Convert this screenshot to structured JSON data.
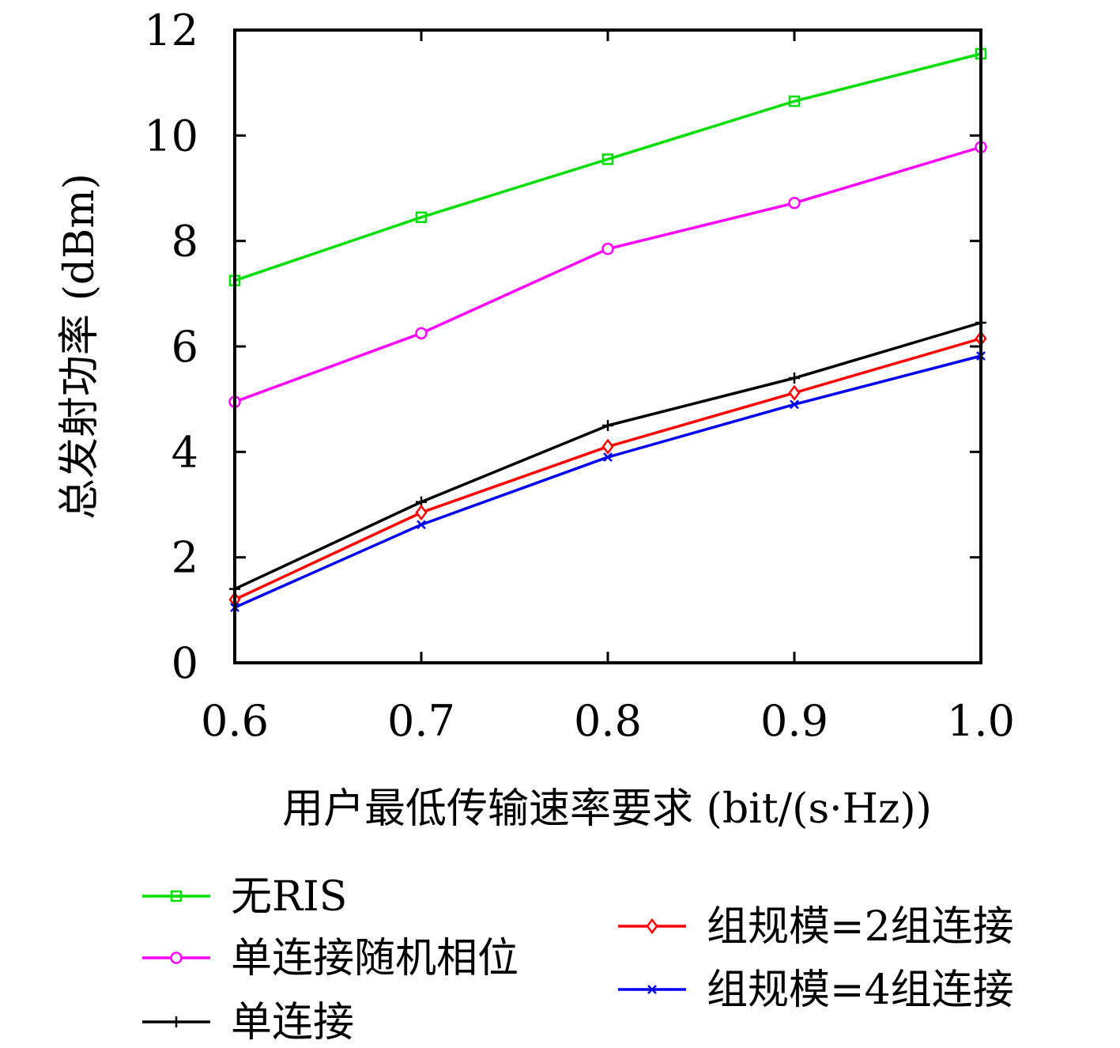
{
  "chart_data": {
    "type": "line",
    "xlabel": "用户最低传输速率要求 (bit/(s·Hz))",
    "ylabel": "总发射功率 (dBm)",
    "xlim": [
      0.6,
      1.0
    ],
    "ylim": [
      0,
      12
    ],
    "xticks": [
      "0.6",
      "0.7",
      "0.8",
      "0.9",
      "1.0"
    ],
    "yticks": [
      "0",
      "2",
      "4",
      "6",
      "8",
      "10",
      "12"
    ],
    "grid": false,
    "legend_position": "bottom",
    "x": [
      0.6,
      0.7,
      0.8,
      0.9,
      1.0
    ],
    "series": [
      {
        "name": "无RIS",
        "values": [
          7.25,
          8.45,
          9.55,
          10.65,
          11.55
        ],
        "color": "#00dd00",
        "marker": "square"
      },
      {
        "name": "单连接随机相位",
        "values": [
          4.95,
          6.25,
          7.85,
          8.72,
          9.78
        ],
        "color": "#ff00ff",
        "marker": "circle"
      },
      {
        "name": "单连接",
        "values": [
          1.4,
          3.05,
          4.5,
          5.4,
          6.45
        ],
        "color": "#000000",
        "marker": "plus"
      },
      {
        "name": "组规模=2组连接",
        "values": [
          1.2,
          2.85,
          4.1,
          5.12,
          6.15
        ],
        "color": "#ff0000",
        "marker": "diamond"
      },
      {
        "name": "组规模=4组连接",
        "values": [
          1.05,
          2.62,
          3.9,
          4.9,
          5.82
        ],
        "color": "#0000ee",
        "marker": "cross"
      }
    ]
  }
}
